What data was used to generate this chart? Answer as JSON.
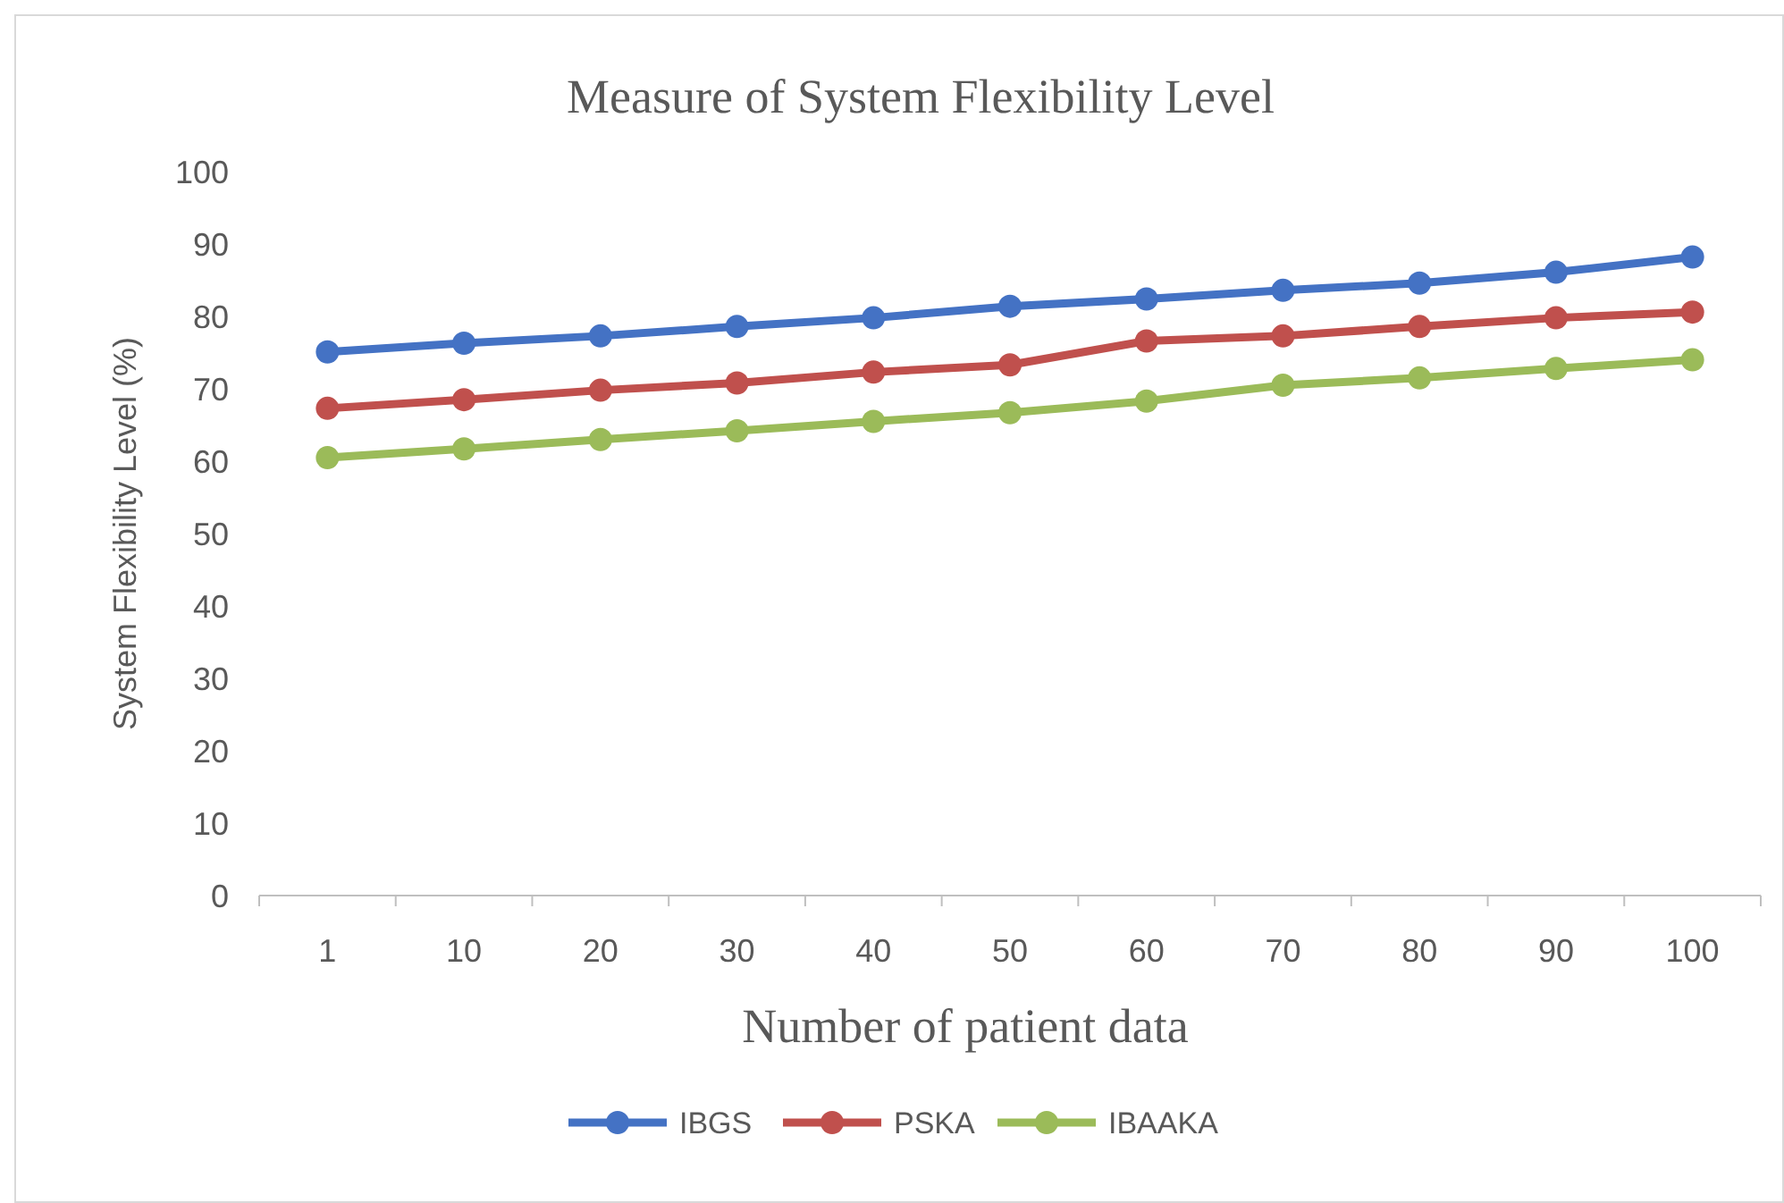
{
  "chart_data": {
    "type": "line",
    "title": "Measure of System Flexibility Level",
    "xlabel": "Number of patient data",
    "ylabel": "System Flexibility Level (%)",
    "categories": [
      "1",
      "10",
      "20",
      "30",
      "40",
      "50",
      "60",
      "70",
      "80",
      "90",
      "100"
    ],
    "series": [
      {
        "name": "IBGS",
        "color": "#4472c4",
        "values": [
          75.1,
          76.3,
          77.3,
          78.6,
          79.8,
          81.4,
          82.4,
          83.6,
          84.6,
          86.1,
          88.2
        ]
      },
      {
        "name": "PSKA",
        "color": "#c0504d",
        "values": [
          67.3,
          68.5,
          69.8,
          70.8,
          72.3,
          73.3,
          76.6,
          77.3,
          78.6,
          79.8,
          80.6
        ]
      },
      {
        "name": "IBAAKA",
        "color": "#9bbb59",
        "values": [
          60.5,
          61.7,
          63,
          64.2,
          65.5,
          66.7,
          68.3,
          70.5,
          71.5,
          72.8,
          74
        ]
      }
    ],
    "ylim": [
      0,
      100
    ],
    "yticks": [
      0,
      10,
      20,
      30,
      40,
      50,
      60,
      70,
      80,
      90,
      100
    ],
    "grid": false,
    "legend": "bottom",
    "marker": "circle",
    "line_style": "solid"
  }
}
